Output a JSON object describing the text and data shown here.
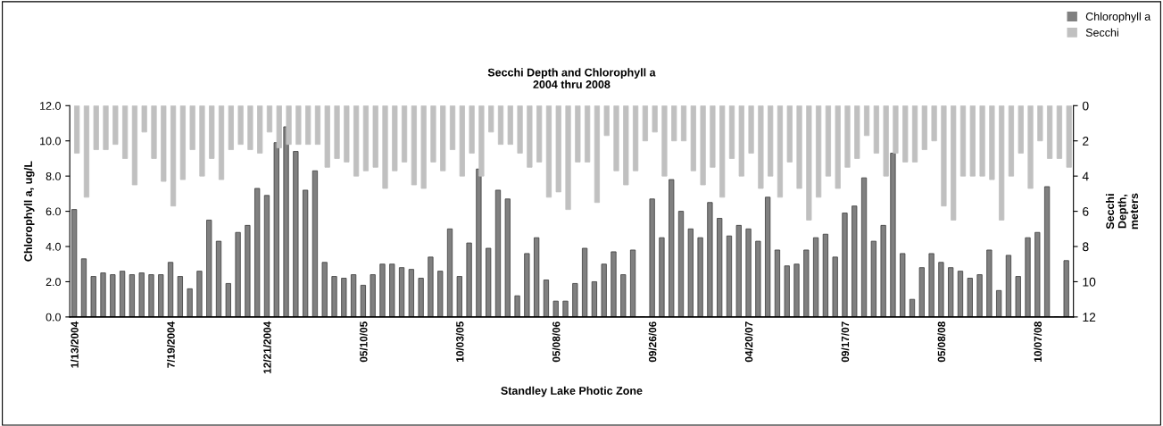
{
  "chart_data": {
    "type": "bar",
    "title": "Secchi Depth and Chlorophyll a\n2004 thru 2008",
    "xlabel": "Standley Lake Photic Zone",
    "ylabel": "Chlorophyll a, ug/L",
    "y2label": "Secchi\nDepth,\nmeters",
    "categories": [
      "1/13/2004",
      null,
      null,
      null,
      null,
      null,
      null,
      null,
      null,
      null,
      "7/19/2004",
      null,
      null,
      null,
      null,
      null,
      null,
      null,
      null,
      null,
      "12/21/2004",
      null,
      null,
      null,
      null,
      null,
      null,
      null,
      null,
      null,
      "05/10/05",
      null,
      null,
      null,
      null,
      null,
      null,
      null,
      null,
      null,
      "10/03/05",
      null,
      null,
      null,
      null,
      null,
      null,
      null,
      null,
      null,
      "05/08/06",
      null,
      null,
      null,
      null,
      null,
      null,
      null,
      null,
      null,
      "09/26/06",
      null,
      null,
      null,
      null,
      null,
      null,
      null,
      null,
      null,
      "04/20/07",
      null,
      null,
      null,
      null,
      null,
      null,
      null,
      null,
      null,
      "09/17/07",
      null,
      null,
      null,
      null,
      null,
      null,
      null,
      null,
      null,
      "05/08/08",
      null,
      null,
      null,
      null,
      null,
      null,
      null,
      null,
      null,
      "10/07/08",
      null,
      null,
      null
    ],
    "series": [
      {
        "name": "Chlorophyll a",
        "color": "#808080",
        "values": [
          6.1,
          3.3,
          2.3,
          2.5,
          2.4,
          2.6,
          2.4,
          2.5,
          2.4,
          2.4,
          3.1,
          2.3,
          1.6,
          2.6,
          5.5,
          4.3,
          1.9,
          4.8,
          5.2,
          7.3,
          6.9,
          9.9,
          10.8,
          9.4,
          7.2,
          8.3,
          3.1,
          2.3,
          2.2,
          2.4,
          1.8,
          2.4,
          3.0,
          3.0,
          2.8,
          2.7,
          2.2,
          3.4,
          2.6,
          5.0,
          2.3,
          4.2,
          8.4,
          3.9,
          7.2,
          6.7,
          1.2,
          3.6,
          4.5,
          2.1,
          0.9,
          0.9,
          1.9,
          3.9,
          2.0,
          3.0,
          3.7,
          2.4,
          3.8,
          null,
          6.7,
          4.5,
          7.8,
          6.0,
          5.0,
          4.5,
          6.5,
          5.6,
          4.6,
          5.2,
          5.0,
          4.3,
          6.8,
          3.8,
          2.9,
          3.0,
          3.8,
          4.5,
          4.7,
          3.4,
          5.9,
          6.3,
          7.9,
          4.3,
          5.2,
          9.3,
          3.6,
          1.0,
          2.8,
          3.6,
          3.1,
          2.8,
          2.6,
          2.2,
          2.4,
          3.8,
          1.5,
          3.5,
          2.3,
          4.5,
          4.8,
          7.4,
          null,
          3.2
        ]
      },
      {
        "name": "Secchi",
        "color": "#c0c0c0",
        "axis": "y2",
        "values": [
          2.7,
          5.2,
          2.5,
          2.5,
          2.2,
          3.0,
          4.5,
          1.5,
          3.0,
          4.3,
          5.7,
          4.2,
          2.5,
          4.0,
          3.0,
          4.2,
          2.5,
          2.2,
          2.5,
          2.7,
          1.5,
          2.4,
          2.2,
          2.2,
          2.2,
          2.2,
          3.5,
          3.0,
          3.2,
          4.0,
          3.7,
          3.5,
          4.7,
          3.7,
          3.2,
          4.5,
          4.7,
          3.2,
          3.7,
          2.5,
          4.0,
          2.7,
          4.0,
          1.5,
          2.2,
          2.2,
          2.7,
          3.5,
          3.2,
          5.2,
          4.9,
          5.9,
          3.2,
          3.2,
          5.5,
          1.7,
          3.7,
          4.5,
          3.7,
          2.0,
          1.5,
          4.0,
          2.0,
          2.0,
          3.7,
          4.5,
          3.5,
          5.2,
          3.0,
          4.0,
          2.7,
          4.7,
          4.0,
          5.2,
          3.2,
          4.7,
          6.5,
          5.2,
          4.0,
          4.7,
          3.5,
          3.0,
          1.7,
          2.7,
          4.0,
          2.7,
          3.2,
          3.2,
          2.5,
          2.0,
          5.7,
          6.5,
          4.0,
          4.0,
          4.0,
          4.2,
          6.5,
          4.0,
          2.7,
          4.7,
          2.0,
          3.0,
          3.0,
          3.5
        ]
      }
    ],
    "ylim": [
      0,
      12
    ],
    "yticks": [
      {
        "value": 0,
        "label": "0.0"
      },
      {
        "value": 2,
        "label": "2.0"
      },
      {
        "value": 4,
        "label": "4.0"
      },
      {
        "value": 6,
        "label": "6.0"
      },
      {
        "value": 8,
        "label": "8.0"
      },
      {
        "value": 10,
        "label": "10.0"
      },
      {
        "value": 12,
        "label": "12.0"
      }
    ],
    "y2lim": [
      12,
      0
    ],
    "y2ticks": [
      0,
      2,
      4,
      6,
      8,
      10,
      12
    ],
    "grid": false,
    "legend": "top right"
  }
}
